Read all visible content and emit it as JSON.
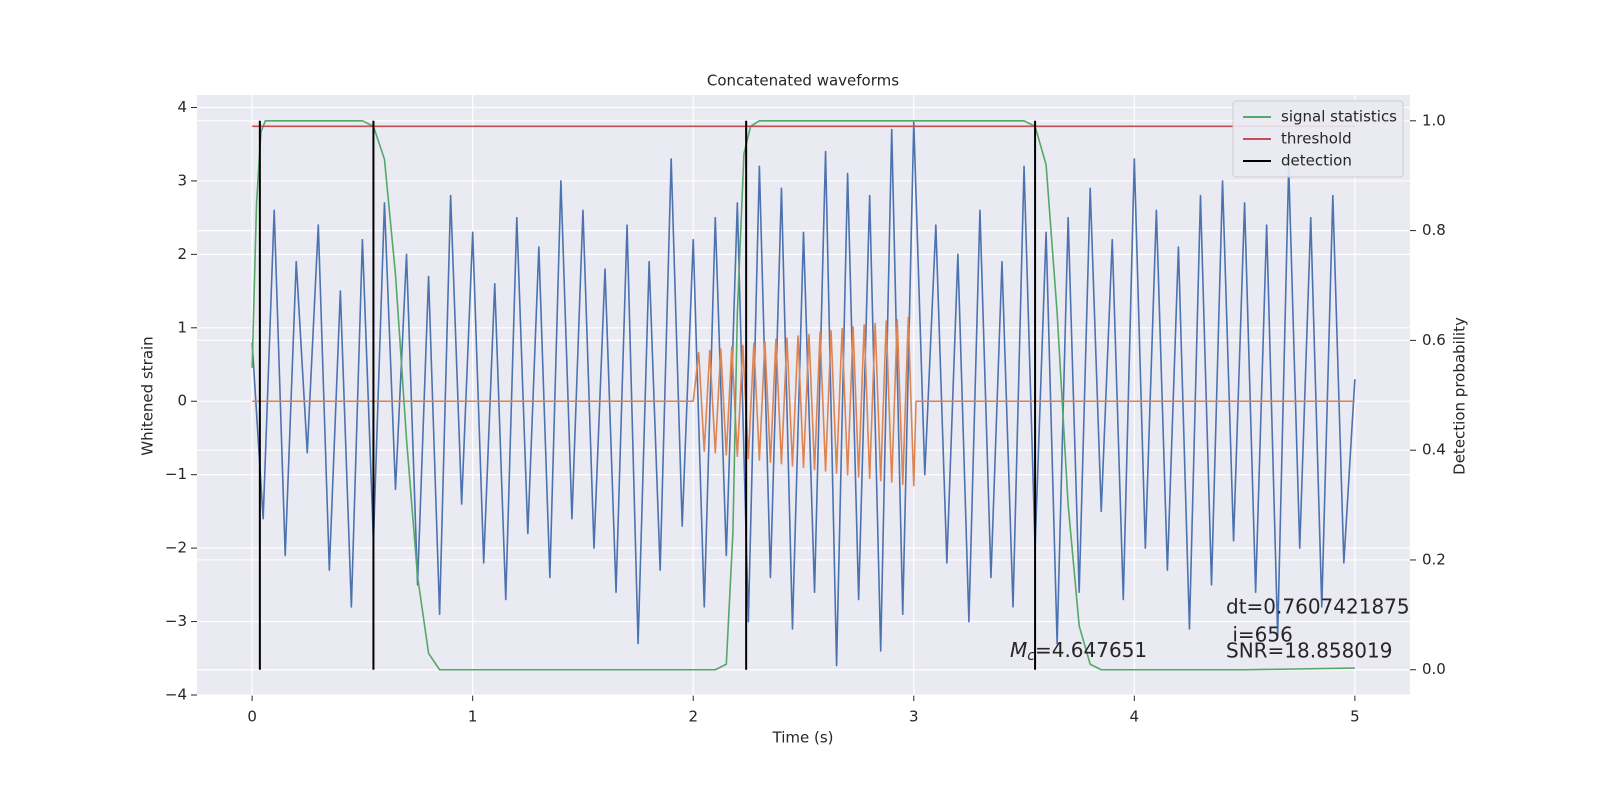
{
  "chart_data": {
    "type": "line",
    "title": "Concatenated waveforms",
    "xlabel": "Time (s)",
    "ylabel": "Whitened strain",
    "y2label": "Detection probability",
    "xlim": [
      -0.25,
      5.25
    ],
    "ylim": [
      -4.0,
      4.17
    ],
    "y2lim": [
      -0.046,
      1.047
    ],
    "xticks": [
      0,
      1,
      2,
      3,
      4,
      5
    ],
    "yticks": [
      {
        "value": -4,
        "label": "−4"
      },
      {
        "value": -3,
        "label": "−3"
      },
      {
        "value": -2,
        "label": "−2"
      },
      {
        "value": -1,
        "label": "−1"
      },
      0,
      1,
      2,
      3,
      4
    ],
    "y2ticks": [
      {
        "value": 0,
        "label": "0.0"
      },
      0.2,
      0.4,
      0.6,
      0.8,
      {
        "value": 1,
        "label": "1.0"
      }
    ],
    "grid": true,
    "legend": "upper right",
    "series": [
      {
        "color": "#4c72b0",
        "x": [
          0,
          0.05,
          0.1,
          0.15,
          0.2,
          0.25,
          0.3,
          0.35,
          0.4,
          0.45,
          0.5,
          0.55,
          0.6,
          0.65,
          0.7,
          0.75,
          0.8,
          0.85,
          0.9,
          0.95,
          1,
          1.05,
          1.1,
          1.15,
          1.2,
          1.25,
          1.3,
          1.35,
          1.4,
          1.45,
          1.5,
          1.55,
          1.6,
          1.65,
          1.7,
          1.75,
          1.8,
          1.85,
          1.9,
          1.95,
          2,
          2.05,
          2.1,
          2.15,
          2.2,
          2.25,
          2.3,
          2.35,
          2.4,
          2.45,
          2.5,
          2.55,
          2.6,
          2.65,
          2.7,
          2.75,
          2.8,
          2.85,
          2.9,
          2.95,
          3,
          3.05,
          3.1,
          3.15,
          3.2,
          3.25,
          3.3,
          3.35,
          3.4,
          3.45,
          3.5,
          3.55,
          3.6,
          3.65,
          3.7,
          3.75,
          3.8,
          3.85,
          3.9,
          3.95,
          4,
          4.05,
          4.1,
          4.15,
          4.2,
          4.25,
          4.3,
          4.35,
          4.4,
          4.45,
          4.5,
          4.55,
          4.6,
          4.65,
          4.7,
          4.75,
          4.8,
          4.85,
          4.9,
          4.95,
          5
        ],
        "values": [
          0.8,
          -1.6,
          2.6,
          -2.1,
          1.9,
          -0.7,
          2.4,
          -2.3,
          1.5,
          -2.8,
          2.2,
          -1.9,
          2.7,
          -1.2,
          2.0,
          -2.5,
          1.7,
          -2.9,
          2.8,
          -1.4,
          2.3,
          -2.2,
          1.6,
          -2.7,
          2.5,
          -1.8,
          2.1,
          -2.4,
          3.0,
          -1.6,
          2.6,
          -2.0,
          1.8,
          -2.6,
          2.4,
          -3.3,
          1.9,
          -2.3,
          3.3,
          -1.7,
          2.2,
          -2.8,
          2.5,
          -2.1,
          2.7,
          -3.0,
          3.2,
          -2.4,
          2.9,
          -3.1,
          2.3,
          -2.6,
          3.4,
          -3.6,
          3.1,
          -2.7,
          2.8,
          -3.4,
          3.7,
          -2.9,
          3.8,
          -1.0,
          2.4,
          -2.2,
          2.0,
          -3.0,
          2.6,
          -2.4,
          1.9,
          -2.8,
          3.2,
          -2.0,
          2.3,
          -3.3,
          2.5,
          -2.6,
          2.9,
          -1.5,
          2.2,
          -2.7,
          3.3,
          -2.0,
          2.6,
          -2.3,
          2.1,
          -3.1,
          2.8,
          -2.5,
          3.0,
          -1.9,
          2.7,
          -2.6,
          2.4,
          -3.2,
          3.2,
          -2.0,
          2.5,
          -2.8,
          2.8,
          -2.2,
          0.3
        ]
      },
      {
        "color": "#dd8452",
        "x": [
          0,
          2,
          2.025,
          2.05,
          2.075,
          2.1,
          2.125,
          2.15,
          2.175,
          2.2,
          2.225,
          2.25,
          2.275,
          2.3,
          2.325,
          2.35,
          2.375,
          2.4,
          2.425,
          2.45,
          2.475,
          2.5,
          2.525,
          2.55,
          2.575,
          2.6,
          2.625,
          2.65,
          2.675,
          2.7,
          2.725,
          2.75,
          2.775,
          2.8,
          2.825,
          2.85,
          2.875,
          2.9,
          2.925,
          2.95,
          2.975,
          3.0,
          3.01,
          5
        ],
        "values": [
          0,
          0,
          0.66,
          -0.68,
          0.69,
          -0.7,
          0.71,
          -0.73,
          0.74,
          -0.75,
          0.76,
          -0.78,
          0.79,
          -0.8,
          0.81,
          -0.83,
          0.84,
          -0.85,
          0.86,
          -0.88,
          0.89,
          -0.9,
          0.91,
          -0.93,
          0.94,
          -0.95,
          0.96,
          -0.98,
          0.99,
          -1.0,
          1.01,
          -1.03,
          1.04,
          -1.05,
          1.06,
          -1.08,
          1.09,
          -1.1,
          1.11,
          -1.13,
          1.14,
          -1.15,
          0,
          0
        ]
      },
      {
        "name": "signal statistics",
        "color": "#55a868",
        "axis": "y2",
        "x": [
          0,
          0.02,
          0.04,
          0.06,
          0.1,
          0.5,
          0.55,
          0.6,
          0.65,
          0.7,
          0.75,
          0.8,
          0.85,
          1.5,
          2.1,
          2.15,
          2.18,
          2.2,
          2.23,
          2.26,
          2.3,
          2.5,
          3.5,
          3.55,
          3.6,
          3.65,
          3.7,
          3.75,
          3.8,
          3.85,
          4.5,
          5.0
        ],
        "values": [
          0.55,
          0.85,
          0.98,
          1.0,
          1.0,
          1.0,
          0.99,
          0.93,
          0.72,
          0.42,
          0.17,
          0.03,
          0.0,
          0.0,
          0.0,
          0.01,
          0.25,
          0.65,
          0.94,
          0.99,
          1.0,
          1.0,
          1.0,
          0.99,
          0.92,
          0.65,
          0.3,
          0.08,
          0.01,
          0.0,
          0.0,
          0.003
        ]
      },
      {
        "name": "threshold",
        "color": "#c44e52",
        "axis": "y2",
        "x": [
          0,
          5
        ],
        "values": [
          0.99,
          0.99
        ]
      },
      {
        "name": "detection",
        "color": "#000000",
        "axis": "y2",
        "kind": "vlines",
        "x": [
          0.035,
          0.55,
          2.24,
          3.55
        ],
        "span": [
          0,
          1
        ]
      }
    ],
    "annotations": {
      "dt": "dt=0.7607421875",
      "i": " i=656",
      "snr": "SNR=18.858019",
      "mc": {
        "symbol": "M",
        "subscript": "c",
        "text": "=4.647651"
      }
    }
  }
}
